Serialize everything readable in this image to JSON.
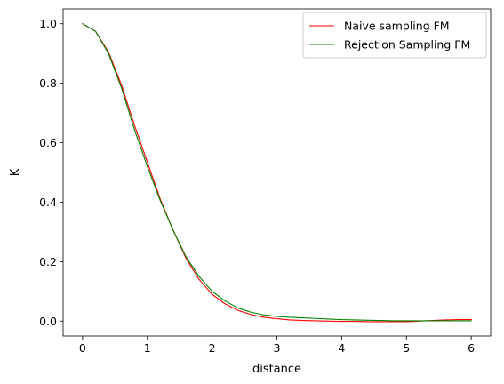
{
  "chart_data": {
    "type": "line",
    "title": "",
    "xlabel": "distance",
    "ylabel": "K",
    "xlim": [
      -0.3,
      6.3
    ],
    "ylim": [
      -0.05,
      1.05
    ],
    "xticks": [
      0,
      1,
      2,
      3,
      4,
      5,
      6
    ],
    "yticks": [
      0.0,
      0.2,
      0.4,
      0.6,
      0.8,
      1.0
    ],
    "xtick_labels": [
      "0",
      "1",
      "2",
      "3",
      "4",
      "5",
      "6"
    ],
    "ytick_labels": [
      "0.0",
      "0.2",
      "0.4",
      "0.6",
      "0.8",
      "1.0"
    ],
    "grid": false,
    "legend_position": "top-right",
    "x": [
      0,
      0.2,
      0.4,
      0.6,
      0.8,
      1.0,
      1.2,
      1.4,
      1.6,
      1.8,
      2.0,
      2.2,
      2.4,
      2.6,
      2.8,
      3.0,
      3.2,
      3.4,
      3.6,
      3.8,
      4.0,
      4.2,
      4.4,
      4.6,
      4.8,
      5.0,
      5.2,
      5.4,
      5.6,
      5.8,
      6.0
    ],
    "series": [
      {
        "name": "Naive sampling FM",
        "color": "#ff0000",
        "values": [
          1.0,
          0.975,
          0.905,
          0.795,
          0.66,
          0.535,
          0.41,
          0.305,
          0.21,
          0.14,
          0.09,
          0.058,
          0.036,
          0.022,
          0.013,
          0.008,
          0.004,
          0.002,
          0.001,
          0.0,
          -0.001,
          -0.001,
          -0.002,
          -0.002,
          -0.002,
          -0.002,
          0.0,
          0.002,
          0.004,
          0.005,
          0.005
        ]
      },
      {
        "name": "Rejection Sampling FM",
        "color": "#008000",
        "values": [
          1.0,
          0.975,
          0.9,
          0.785,
          0.645,
          0.52,
          0.405,
          0.305,
          0.215,
          0.15,
          0.1,
          0.068,
          0.044,
          0.03,
          0.021,
          0.016,
          0.013,
          0.011,
          0.009,
          0.007,
          0.005,
          0.004,
          0.003,
          0.002,
          0.001,
          0.001,
          0.001,
          0.001,
          0.001,
          0.001,
          0.001
        ]
      }
    ]
  }
}
